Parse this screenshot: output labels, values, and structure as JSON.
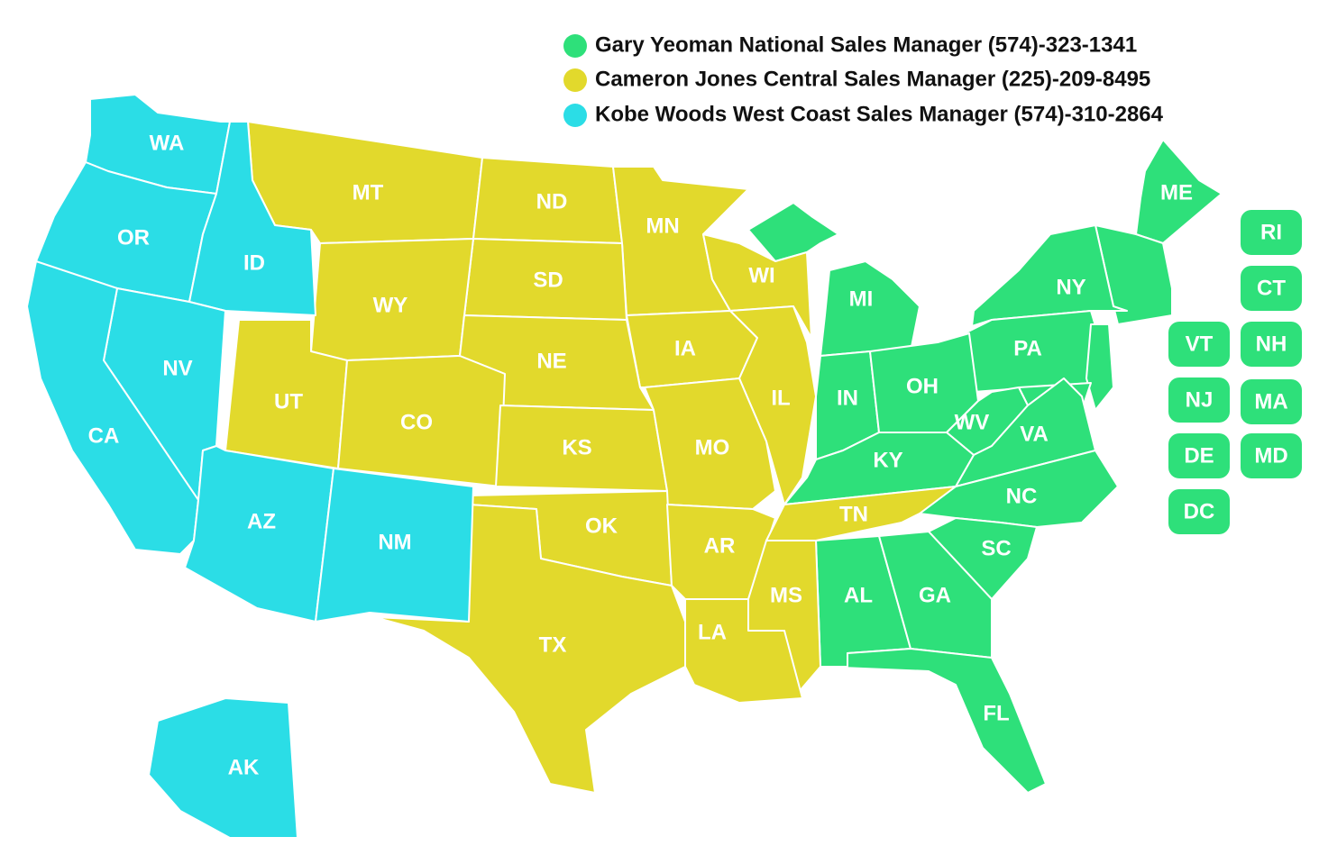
{
  "regions": [
    {
      "manager": "Gary Yeoman National Sales Manager (574)-323-1341",
      "color": "#2ee07a",
      "states": [
        "ME",
        "MI",
        "NY",
        "PA",
        "IN",
        "OH",
        "WV",
        "VA",
        "KY",
        "NC",
        "SC",
        "AL",
        "GA",
        "FL"
      ],
      "buttons": [
        "RI",
        "CT",
        "VT",
        "NH",
        "NJ",
        "MA",
        "DE",
        "MD",
        "DC"
      ]
    },
    {
      "manager": "Cameron Jones Central Sales Manager (225)-209-8495",
      "color": "#e2d92c",
      "states": [
        "MT",
        "ND",
        "MN",
        "SD",
        "WI",
        "WY",
        "IA",
        "NE",
        "UT",
        "CO",
        "IL",
        "KS",
        "MO",
        "OK",
        "AR",
        "TN",
        "MS",
        "LA",
        "TX"
      ],
      "buttons": []
    },
    {
      "manager": "Kobe Woods West Coast Sales Manager (574)-310-2864",
      "color": "#2bdde6",
      "states": [
        "WA",
        "OR",
        "ID",
        "NV",
        "CA",
        "AZ",
        "NM",
        "AK"
      ],
      "buttons": []
    }
  ]
}
